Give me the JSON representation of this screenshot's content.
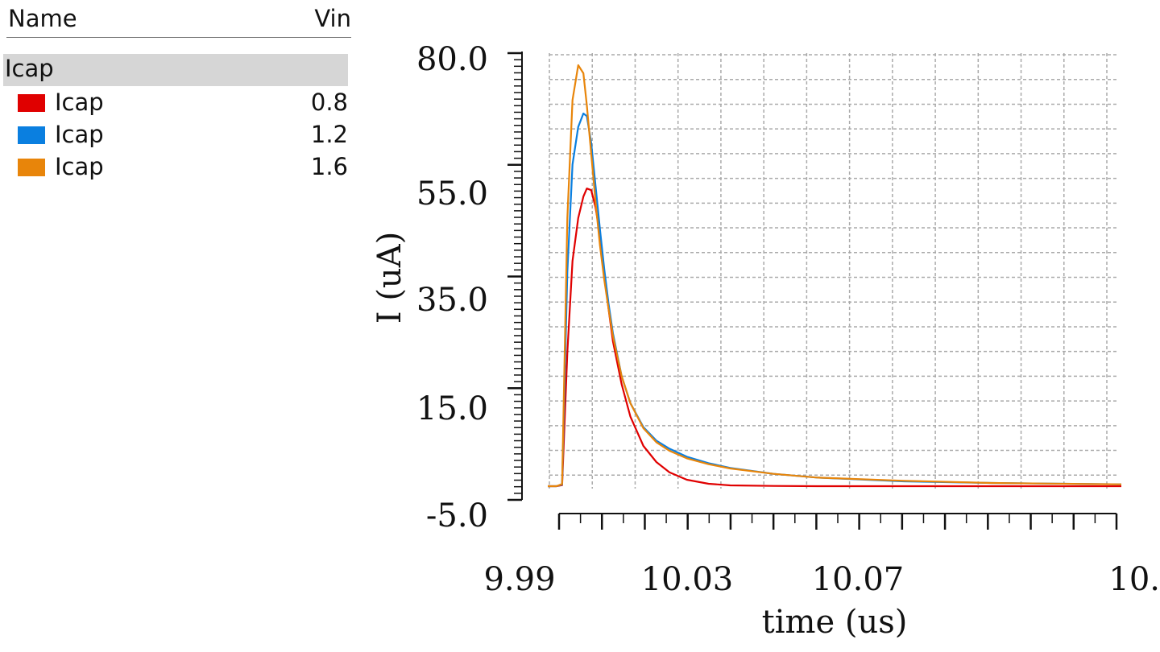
{
  "legend": {
    "header_name": "Name",
    "header_vin": "Vin",
    "group": "Icap",
    "items": [
      {
        "label": "Icap",
        "vin": "0.8",
        "color": "#e00000"
      },
      {
        "label": "Icap",
        "vin": "1.2",
        "color": "#0a7fe0"
      },
      {
        "label": "Icap",
        "vin": "1.6",
        "color": "#e8850a"
      }
    ]
  },
  "chart_data": {
    "type": "line",
    "title": "",
    "xlabel": "time (us)",
    "ylabel": "I (uA)",
    "xlim": [
      9.99,
      10.12
    ],
    "ylim": [
      -5.0,
      80.0
    ],
    "x_tick_labels": [
      "9.99",
      "10.03",
      "10.07",
      "10."
    ],
    "x_tick_values": [
      9.99,
      10.03,
      10.07,
      10.12
    ],
    "y_tick_labels": [
      "80.0",
      "55.0",
      "35.0",
      "15.0",
      "-5.0"
    ],
    "y_tick_values": [
      80.0,
      55.0,
      35.0,
      15.0,
      -5.0
    ],
    "grid": true,
    "series": [
      {
        "name": "Icap 0.8",
        "color": "#e00000",
        "x": [
          9.988,
          9.99,
          9.9913,
          9.9925,
          9.9937,
          9.995,
          9.9962,
          9.997,
          9.998,
          9.999,
          10.0,
          10.001,
          10.002,
          10.003,
          10.005,
          10.007,
          10.01,
          10.013,
          10.016,
          10.02,
          10.025,
          10.03,
          10.04,
          10.05,
          10.07,
          10.09,
          10.12
        ],
        "y": [
          0.0,
          0.0,
          0.2,
          25,
          42,
          50,
          54,
          55.5,
          55.2,
          52,
          47,
          40,
          33,
          27,
          19,
          13,
          7.5,
          4.5,
          2.6,
          1.2,
          0.45,
          0.15,
          0.05,
          0.0,
          0.0,
          0.0,
          0.0
        ]
      },
      {
        "name": "Icap 1.2",
        "color": "#0a7fe0",
        "x": [
          9.988,
          9.99,
          9.9913,
          9.9925,
          9.9937,
          9.995,
          9.9962,
          9.997,
          9.998,
          9.999,
          10.0,
          10.001,
          10.002,
          10.003,
          10.005,
          10.007,
          10.01,
          10.013,
          10.016,
          10.02,
          10.025,
          10.03,
          10.04,
          10.05,
          10.07,
          10.09,
          10.12
        ],
        "y": [
          0.0,
          0.0,
          0.3,
          40,
          60,
          67,
          69.5,
          69,
          64,
          56,
          48,
          40.5,
          34,
          28.5,
          20.5,
          15.5,
          11,
          8.5,
          7,
          5.5,
          4.3,
          3.4,
          2.3,
          1.6,
          0.9,
          0.6,
          0.35
        ]
      },
      {
        "name": "Icap 1.6",
        "color": "#e8850a",
        "x": [
          9.988,
          9.99,
          9.9913,
          9.9925,
          9.9937,
          9.995,
          9.9962,
          9.997,
          9.998,
          9.999,
          10.0,
          10.001,
          10.002,
          10.003,
          10.005,
          10.007,
          10.01,
          10.013,
          10.016,
          10.02,
          10.025,
          10.03,
          10.04,
          10.05,
          10.07,
          10.09,
          10.12
        ],
        "y": [
          0.0,
          0.0,
          0.4,
          50,
          72,
          78.5,
          77,
          71,
          62,
          53,
          45,
          38.5,
          33,
          28,
          20.5,
          15.5,
          10.8,
          8.2,
          6.6,
          5.2,
          4.1,
          3.3,
          2.3,
          1.6,
          1.0,
          0.6,
          0.35
        ]
      }
    ]
  }
}
